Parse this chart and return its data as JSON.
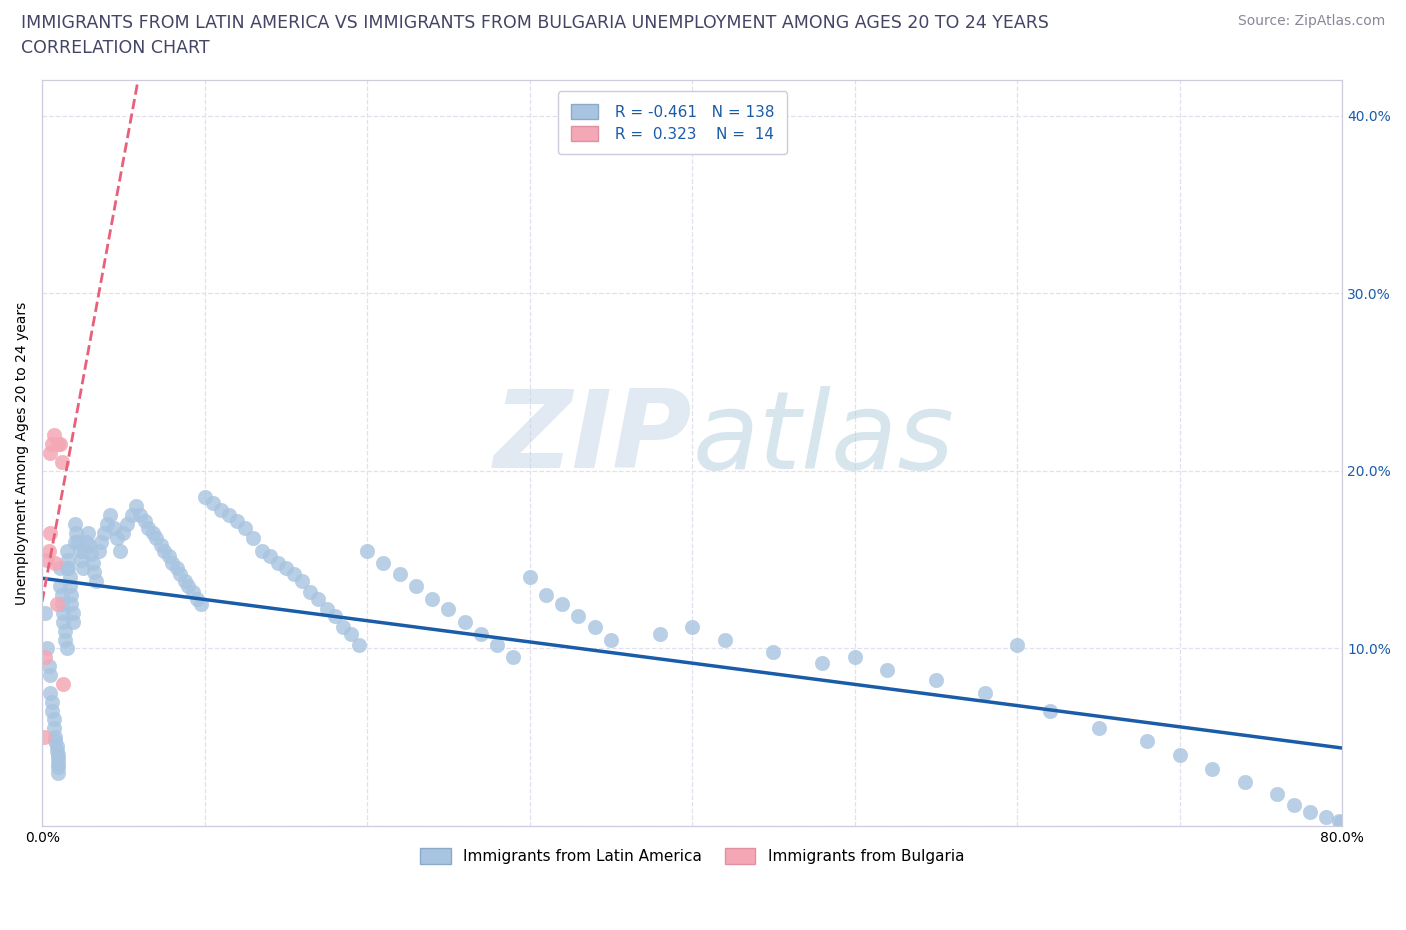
{
  "title_line1": "IMMIGRANTS FROM LATIN AMERICA VS IMMIGRANTS FROM BULGARIA UNEMPLOYMENT AMONG AGES 20 TO 24 YEARS",
  "title_line2": "CORRELATION CHART",
  "source_text": "Source: ZipAtlas.com",
  "ylabel": "Unemployment Among Ages 20 to 24 years",
  "xlim": [
    0.0,
    0.8
  ],
  "ylim": [
    0.0,
    0.42
  ],
  "blue_R": -0.461,
  "blue_N": 138,
  "pink_R": 0.323,
  "pink_N": 14,
  "blue_color": "#A8C4E0",
  "pink_color": "#F4A7B5",
  "blue_line_color": "#1A5CA8",
  "pink_line_color": "#E8607A",
  "background_color": "#FFFFFF",
  "grid_color": "#E0E0EE",
  "legend_label_blue": "Immigrants from Latin America",
  "legend_label_pink": "Immigrants from Bulgaria",
  "title_fontsize": 12.5,
  "subtitle_fontsize": 12.5,
  "axis_label_fontsize": 10,
  "tick_fontsize": 10,
  "legend_fontsize": 11,
  "source_fontsize": 10,
  "blue_scatter_x": [
    0.002,
    0.003,
    0.004,
    0.005,
    0.005,
    0.006,
    0.006,
    0.007,
    0.007,
    0.008,
    0.008,
    0.009,
    0.009,
    0.01,
    0.01,
    0.01,
    0.01,
    0.01,
    0.011,
    0.011,
    0.012,
    0.012,
    0.013,
    0.013,
    0.014,
    0.014,
    0.015,
    0.015,
    0.015,
    0.016,
    0.016,
    0.017,
    0.017,
    0.018,
    0.018,
    0.019,
    0.019,
    0.02,
    0.02,
    0.021,
    0.022,
    0.023,
    0.024,
    0.025,
    0.026,
    0.027,
    0.028,
    0.029,
    0.03,
    0.031,
    0.032,
    0.033,
    0.035,
    0.036,
    0.038,
    0.04,
    0.042,
    0.044,
    0.046,
    0.048,
    0.05,
    0.052,
    0.055,
    0.058,
    0.06,
    0.063,
    0.065,
    0.068,
    0.07,
    0.073,
    0.075,
    0.078,
    0.08,
    0.083,
    0.085,
    0.088,
    0.09,
    0.093,
    0.095,
    0.098,
    0.1,
    0.105,
    0.11,
    0.115,
    0.12,
    0.125,
    0.13,
    0.135,
    0.14,
    0.145,
    0.15,
    0.155,
    0.16,
    0.165,
    0.17,
    0.175,
    0.18,
    0.185,
    0.19,
    0.195,
    0.2,
    0.21,
    0.22,
    0.23,
    0.24,
    0.25,
    0.26,
    0.27,
    0.28,
    0.29,
    0.3,
    0.31,
    0.32,
    0.33,
    0.34,
    0.35,
    0.38,
    0.4,
    0.42,
    0.45,
    0.48,
    0.5,
    0.52,
    0.55,
    0.58,
    0.6,
    0.62,
    0.65,
    0.68,
    0.7,
    0.72,
    0.74,
    0.76,
    0.77,
    0.78,
    0.79,
    0.798,
    0.799
  ],
  "blue_scatter_y": [
    0.12,
    0.1,
    0.09,
    0.085,
    0.075,
    0.07,
    0.065,
    0.06,
    0.055,
    0.05,
    0.048,
    0.045,
    0.042,
    0.04,
    0.038,
    0.035,
    0.033,
    0.03,
    0.145,
    0.135,
    0.13,
    0.125,
    0.12,
    0.115,
    0.11,
    0.105,
    0.1,
    0.145,
    0.155,
    0.15,
    0.145,
    0.14,
    0.135,
    0.13,
    0.125,
    0.12,
    0.115,
    0.16,
    0.17,
    0.165,
    0.16,
    0.155,
    0.15,
    0.145,
    0.155,
    0.16,
    0.165,
    0.158,
    0.153,
    0.148,
    0.143,
    0.138,
    0.155,
    0.16,
    0.165,
    0.17,
    0.175,
    0.168,
    0.162,
    0.155,
    0.165,
    0.17,
    0.175,
    0.18,
    0.175,
    0.172,
    0.168,
    0.165,
    0.162,
    0.158,
    0.155,
    0.152,
    0.148,
    0.145,
    0.142,
    0.138,
    0.135,
    0.132,
    0.128,
    0.125,
    0.185,
    0.182,
    0.178,
    0.175,
    0.172,
    0.168,
    0.162,
    0.155,
    0.152,
    0.148,
    0.145,
    0.142,
    0.138,
    0.132,
    0.128,
    0.122,
    0.118,
    0.112,
    0.108,
    0.102,
    0.155,
    0.148,
    0.142,
    0.135,
    0.128,
    0.122,
    0.115,
    0.108,
    0.102,
    0.095,
    0.14,
    0.13,
    0.125,
    0.118,
    0.112,
    0.105,
    0.108,
    0.112,
    0.105,
    0.098,
    0.092,
    0.095,
    0.088,
    0.082,
    0.075,
    0.102,
    0.065,
    0.055,
    0.048,
    0.04,
    0.032,
    0.025,
    0.018,
    0.012,
    0.008,
    0.005,
    0.003,
    0.002
  ],
  "pink_scatter_x": [
    0.001,
    0.002,
    0.003,
    0.004,
    0.005,
    0.005,
    0.006,
    0.007,
    0.008,
    0.009,
    0.01,
    0.011,
    0.012,
    0.013
  ],
  "pink_scatter_y": [
    0.05,
    0.095,
    0.15,
    0.155,
    0.165,
    0.21,
    0.215,
    0.22,
    0.148,
    0.125,
    0.215,
    0.215,
    0.205,
    0.08
  ]
}
